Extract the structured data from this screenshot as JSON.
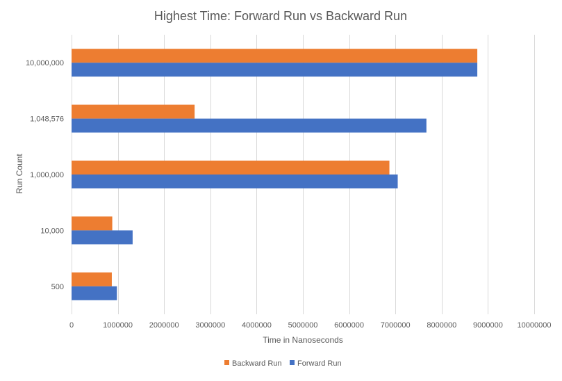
{
  "chart_data": {
    "type": "bar",
    "orientation": "horizontal",
    "title": "Highest Time: Forward Run vs Backward Run",
    "xlabel": "Time  in Nanoseconds",
    "ylabel": "Run Count",
    "categories": [
      "500",
      "10,000",
      "1,000,000",
      "1,048,576",
      "10,000,000"
    ],
    "series": [
      {
        "name": "Forward Run",
        "color": "#4472C4",
        "values": [
          980000,
          1320000,
          7050000,
          7670000,
          8770000
        ]
      },
      {
        "name": "Backward Run",
        "color": "#ED7D31",
        "values": [
          870000,
          880000,
          6870000,
          2660000,
          8770000
        ]
      }
    ],
    "xlim": [
      0,
      10000000
    ],
    "xticks": [
      0,
      1000000,
      2000000,
      3000000,
      4000000,
      5000000,
      6000000,
      7000000,
      8000000,
      9000000,
      10000000
    ],
    "grid": true,
    "legend_position": "bottom",
    "legend_order": [
      "Backward Run",
      "Forward Run"
    ]
  }
}
